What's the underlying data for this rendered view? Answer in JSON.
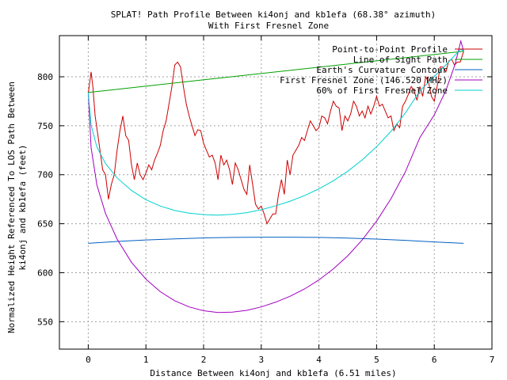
{
  "chart_data": {
    "type": "line",
    "title_line1": "SPLAT! Path Profile Between ki4onj and kb1efa (68.38° azimuth)",
    "title_line2": "With First Fresnel Zone",
    "xlabel": "Distance Between ki4onj and kb1efa (6.51 miles)",
    "ylabel_line1": "Normalized Height Referenced To LOS Path Between",
    "ylabel_line2": "ki4onj and kb1efa (feet)",
    "xlim": [
      -0.5,
      7
    ],
    "ylim": [
      522,
      842
    ],
    "xticks": [
      0,
      1,
      2,
      3,
      4,
      5,
      6,
      7
    ],
    "yticks": [
      550,
      600,
      650,
      700,
      750,
      800
    ],
    "grid": true,
    "legend_position": "top-right",
    "series": [
      {
        "name": "Point-to-Point Profile",
        "color": "#cc0000",
        "x": [
          0,
          0.05,
          0.08,
          0.12,
          0.18,
          0.25,
          0.3,
          0.35,
          0.4,
          0.45,
          0.5,
          0.55,
          0.6,
          0.65,
          0.7,
          0.75,
          0.8,
          0.85,
          0.9,
          0.95,
          1.0,
          1.05,
          1.1,
          1.15,
          1.2,
          1.25,
          1.3,
          1.35,
          1.4,
          1.45,
          1.5,
          1.55,
          1.6,
          1.65,
          1.7,
          1.75,
          1.8,
          1.85,
          1.9,
          1.95,
          2.0,
          2.05,
          2.1,
          2.15,
          2.2,
          2.25,
          2.3,
          2.35,
          2.4,
          2.45,
          2.5,
          2.55,
          2.6,
          2.65,
          2.7,
          2.75,
          2.8,
          2.85,
          2.9,
          2.95,
          3.0,
          3.05,
          3.1,
          3.15,
          3.2,
          3.25,
          3.3,
          3.35,
          3.4,
          3.45,
          3.5,
          3.55,
          3.6,
          3.65,
          3.7,
          3.75,
          3.8,
          3.85,
          3.9,
          3.95,
          4.0,
          4.05,
          4.1,
          4.15,
          4.2,
          4.25,
          4.3,
          4.35,
          4.4,
          4.45,
          4.5,
          4.55,
          4.6,
          4.65,
          4.7,
          4.75,
          4.8,
          4.85,
          4.9,
          4.95,
          5.0,
          5.05,
          5.1,
          5.15,
          5.2,
          5.25,
          5.3,
          5.35,
          5.4,
          5.45,
          5.5,
          5.55,
          5.6,
          5.65,
          5.7,
          5.75,
          5.8,
          5.85,
          5.9,
          5.95,
          6.0,
          6.05,
          6.1,
          6.15,
          6.2,
          6.25,
          6.3,
          6.35,
          6.4,
          6.45,
          6.51
        ],
        "y": [
          783,
          805,
          790,
          760,
          735,
          705,
          700,
          675,
          690,
          700,
          725,
          745,
          760,
          740,
          735,
          710,
          695,
          712,
          700,
          695,
          702,
          710,
          705,
          715,
          722,
          730,
          745,
          755,
          772,
          790,
          812,
          815,
          810,
          790,
          772,
          760,
          750,
          740,
          746,
          745,
          732,
          725,
          718,
          720,
          712,
          695,
          720,
          710,
          715,
          705,
          690,
          712,
          705,
          695,
          685,
          680,
          710,
          690,
          670,
          665,
          668,
          660,
          650,
          655,
          660,
          660,
          680,
          695,
          680,
          715,
          700,
          720,
          725,
          730,
          738,
          735,
          745,
          755,
          750,
          745,
          748,
          760,
          758,
          752,
          765,
          775,
          770,
          768,
          745,
          760,
          755,
          762,
          775,
          770,
          760,
          765,
          758,
          770,
          762,
          770,
          780,
          770,
          772,
          765,
          758,
          760,
          745,
          752,
          748,
          770,
          775,
          782,
          790,
          786,
          776,
          790,
          780,
          800,
          795,
          780,
          775,
          790,
          810,
          810,
          805,
          816,
          818,
          812,
          815,
          815,
          826
        ]
      },
      {
        "name": "Line of Sight Path",
        "color": "#00a000",
        "x": [
          0,
          6.51
        ],
        "y": [
          784,
          826
        ]
      },
      {
        "name": "Earth's Curvature Contour",
        "color": "#0060c0",
        "x": [
          0,
          0.5,
          1.0,
          1.5,
          2.0,
          2.5,
          3.0,
          3.26,
          3.5,
          4.0,
          4.5,
          5.0,
          5.5,
          6.0,
          6.51
        ],
        "y": [
          630,
          631.9,
          633.4,
          634.6,
          635.5,
          636.0,
          636.3,
          636.3,
          636.3,
          636.0,
          635.4,
          634.3,
          633.0,
          631.4,
          630
        ]
      },
      {
        "name": "First Fresnel Zone (146.520 MHz)",
        "color": "#a000c0",
        "x": [
          0,
          0.05,
          0.15,
          0.3,
          0.5,
          0.75,
          1.0,
          1.25,
          1.5,
          1.75,
          2.0,
          2.25,
          2.5,
          2.75,
          3.0,
          3.26,
          3.5,
          3.75,
          4.0,
          4.25,
          4.5,
          4.75,
          5.0,
          5.25,
          5.5,
          5.75,
          6.0,
          6.2,
          6.36,
          6.46,
          6.51
        ],
        "y": [
          784,
          727.6,
          689.6,
          660.4,
          634.3,
          610.6,
          593.4,
          580.6,
          571.4,
          565.1,
          561.2,
          559.4,
          559.7,
          561.6,
          565.1,
          570.2,
          576.0,
          583.4,
          592.6,
          603.9,
          617.3,
          633.4,
          652.7,
          675.6,
          703.2,
          737.9,
          761.1,
          785.9,
          812.7,
          836.4,
          826
        ]
      },
      {
        "name": "60% of First Fresnel Zone",
        "color": "#00d0d0",
        "x": [
          0,
          0.05,
          0.15,
          0.3,
          0.5,
          0.75,
          1.0,
          1.25,
          1.5,
          1.75,
          2.0,
          2.25,
          2.5,
          2.75,
          3.0,
          3.26,
          3.5,
          3.75,
          4.0,
          4.25,
          4.5,
          4.75,
          5.0,
          5.25,
          5.5,
          5.75,
          6.0,
          6.2,
          6.36,
          6.46,
          6.51
        ],
        "y": [
          784,
          750.5,
          728.3,
          711.4,
          696.8,
          683.9,
          674.5,
          668.0,
          663.5,
          660.8,
          659.3,
          658.8,
          659.5,
          661.3,
          664.3,
          668.4,
          673.0,
          678.7,
          685.6,
          693.9,
          703.6,
          715.1,
          728.6,
          744.3,
          763.1,
          785.6,
          800.3,
          812.1,
          822.1,
          828.3,
          826
        ]
      }
    ]
  }
}
